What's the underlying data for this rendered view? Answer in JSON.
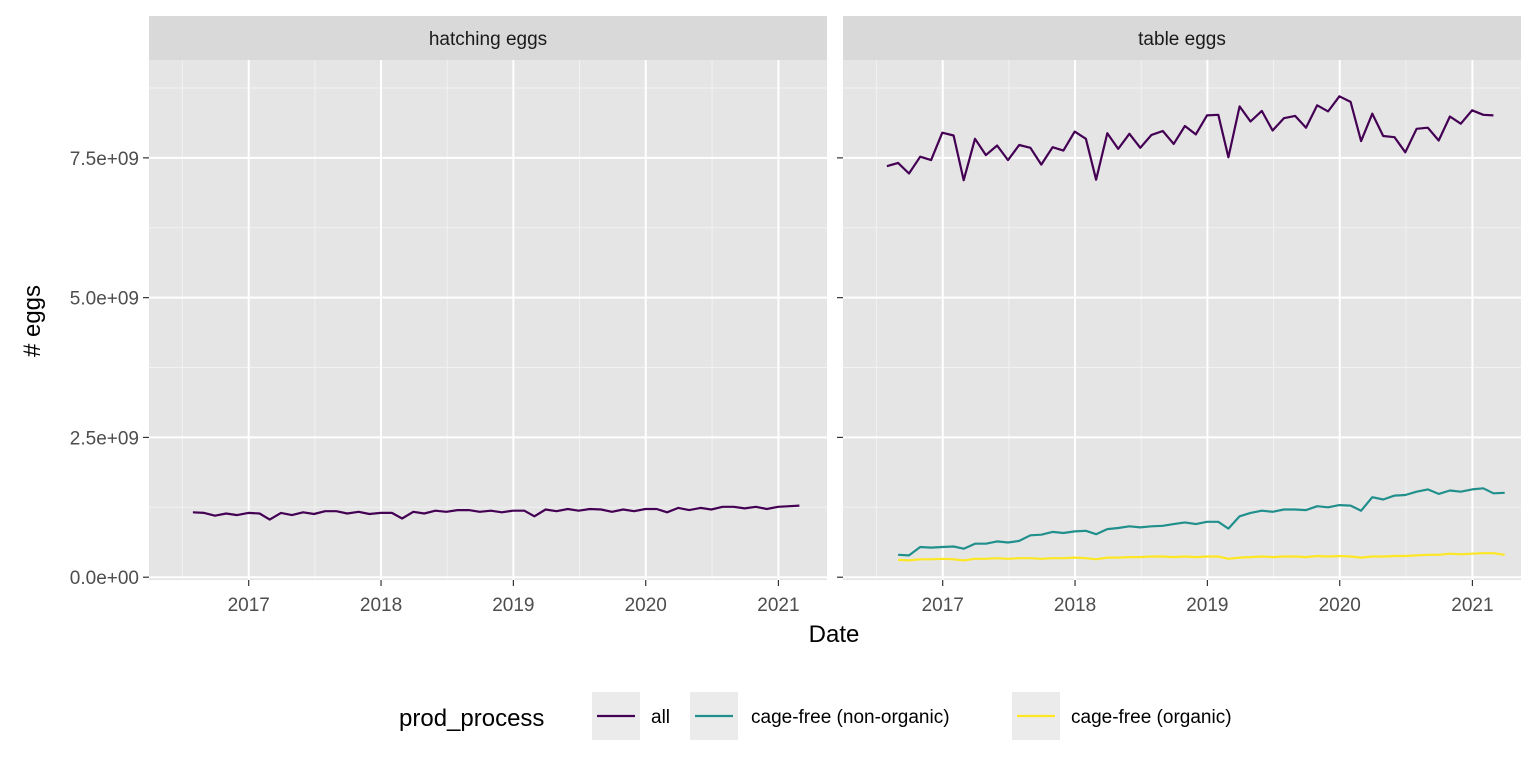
{
  "chart_data": {
    "type": "line",
    "title": "",
    "xlabel": "Date",
    "ylabel": "# eggs",
    "ylim": [
      -50000000,
      9250000000
    ],
    "x_range": [
      "2016-04-01",
      "2021-05-15"
    ],
    "y_ticks": [
      {
        "value": 0,
        "label": "0.0e+00"
      },
      {
        "value": 2500000000,
        "label": "2.5e+09"
      },
      {
        "value": 5000000000,
        "label": "5.0e+09"
      },
      {
        "value": 7500000000,
        "label": "7.5e+09"
      }
    ],
    "x_ticks": [
      {
        "value": "2017-01-01",
        "label": "2017"
      },
      {
        "value": "2018-01-01",
        "label": "2018"
      },
      {
        "value": "2019-01-01",
        "label": "2019"
      },
      {
        "value": "2020-01-01",
        "label": "2020"
      },
      {
        "value": "2021-01-01",
        "label": "2021"
      }
    ],
    "grid": true,
    "legend": {
      "title": "prod_process",
      "position": "bottom",
      "entries": [
        {
          "label": "all",
          "color": "#440154"
        },
        {
          "label": "cage-free (non-organic)",
          "color": "#21908c"
        },
        {
          "label": "cage-free (organic)",
          "color": "#fde725"
        }
      ]
    },
    "panels": [
      {
        "strip": "hatching eggs",
        "series": [
          {
            "legend_label": "all",
            "color": "#440154",
            "x": [
              "2016-07-31",
              "2016-08-31",
              "2016-09-30",
              "2016-10-31",
              "2016-11-30",
              "2016-12-31",
              "2017-01-31",
              "2017-02-28",
              "2017-03-31",
              "2017-04-30",
              "2017-05-31",
              "2017-06-30",
              "2017-07-31",
              "2017-08-31",
              "2017-09-30",
              "2017-10-31",
              "2017-11-30",
              "2017-12-31",
              "2018-01-31",
              "2018-02-28",
              "2018-03-31",
              "2018-04-30",
              "2018-05-31",
              "2018-06-30",
              "2018-07-31",
              "2018-08-31",
              "2018-09-30",
              "2018-10-31",
              "2018-11-30",
              "2018-12-31",
              "2019-01-31",
              "2019-02-28",
              "2019-03-31",
              "2019-04-30",
              "2019-05-31",
              "2019-06-30",
              "2019-07-31",
              "2019-08-31",
              "2019-09-30",
              "2019-10-31",
              "2019-11-30",
              "2019-12-31",
              "2020-01-31",
              "2020-02-29",
              "2020-03-31",
              "2020-04-30",
              "2020-05-31",
              "2020-06-30",
              "2020-07-31",
              "2020-08-31",
              "2020-09-30",
              "2020-10-31",
              "2020-11-30",
              "2020-12-31",
              "2021-01-31",
              "2021-02-28"
            ],
            "y": [
              1160000000,
              1150000000,
              1100000000,
              1140000000,
              1110000000,
              1150000000,
              1140000000,
              1030000000,
              1150000000,
              1110000000,
              1160000000,
              1130000000,
              1180000000,
              1180000000,
              1140000000,
              1170000000,
              1130000000,
              1150000000,
              1150000000,
              1050000000,
              1170000000,
              1140000000,
              1190000000,
              1170000000,
              1200000000,
              1200000000,
              1170000000,
              1190000000,
              1160000000,
              1190000000,
              1190000000,
              1090000000,
              1210000000,
              1180000000,
              1220000000,
              1190000000,
              1220000000,
              1210000000,
              1170000000,
              1210000000,
              1180000000,
              1220000000,
              1220000000,
              1160000000,
              1240000000,
              1200000000,
              1240000000,
              1210000000,
              1260000000,
              1260000000,
              1230000000,
              1260000000,
              1220000000,
              1260000000,
              1270000000,
              1280000000
            ]
          }
        ]
      },
      {
        "strip": "table eggs",
        "series": [
          {
            "legend_label": "all",
            "color": "#440154",
            "x": [
              "2016-07-31",
              "2016-08-31",
              "2016-09-30",
              "2016-10-31",
              "2016-11-30",
              "2016-12-31",
              "2017-01-31",
              "2017-02-28",
              "2017-03-31",
              "2017-04-30",
              "2017-05-31",
              "2017-06-30",
              "2017-07-31",
              "2017-08-31",
              "2017-09-30",
              "2017-10-31",
              "2017-11-30",
              "2017-12-31",
              "2018-01-31",
              "2018-02-28",
              "2018-03-31",
              "2018-04-30",
              "2018-05-31",
              "2018-06-30",
              "2018-07-31",
              "2018-08-31",
              "2018-09-30",
              "2018-10-31",
              "2018-11-30",
              "2018-12-31",
              "2019-01-31",
              "2019-02-28",
              "2019-03-31",
              "2019-04-30",
              "2019-05-31",
              "2019-06-30",
              "2019-07-31",
              "2019-08-31",
              "2019-09-30",
              "2019-10-31",
              "2019-11-30",
              "2019-12-31",
              "2020-01-31",
              "2020-02-29",
              "2020-03-31",
              "2020-04-30",
              "2020-05-31",
              "2020-06-30",
              "2020-07-31",
              "2020-08-31",
              "2020-09-30",
              "2020-10-31",
              "2020-11-30",
              "2020-12-31",
              "2021-01-31",
              "2021-02-28"
            ],
            "y": [
              7350000000,
              7410000000,
              7220000000,
              7520000000,
              7460000000,
              7950000000,
              7900000000,
              7100000000,
              7840000000,
              7550000000,
              7720000000,
              7460000000,
              7730000000,
              7680000000,
              7380000000,
              7690000000,
              7630000000,
              7970000000,
              7840000000,
              7110000000,
              7940000000,
              7660000000,
              7930000000,
              7680000000,
              7910000000,
              7980000000,
              7750000000,
              8070000000,
              7920000000,
              8260000000,
              8270000000,
              7510000000,
              8420000000,
              8150000000,
              8340000000,
              7990000000,
              8210000000,
              8250000000,
              8040000000,
              8440000000,
              8330000000,
              8600000000,
              8500000000,
              7800000000,
              8290000000,
              7890000000,
              7870000000,
              7600000000,
              8020000000,
              8040000000,
              7810000000,
              8240000000,
              8110000000,
              8350000000,
              8270000000,
              8260000000
            ]
          },
          {
            "legend_label": "cage-free (non-organic)",
            "color": "#21908c",
            "x": [
              "2016-08-31",
              "2016-09-30",
              "2016-10-31",
              "2016-11-30",
              "2016-12-31",
              "2017-01-31",
              "2017-02-28",
              "2017-03-31",
              "2017-04-30",
              "2017-05-31",
              "2017-06-30",
              "2017-07-31",
              "2017-08-31",
              "2017-09-30",
              "2017-10-31",
              "2017-11-30",
              "2017-12-31",
              "2018-01-31",
              "2018-02-28",
              "2018-03-31",
              "2018-04-30",
              "2018-05-31",
              "2018-06-30",
              "2018-07-31",
              "2018-08-31",
              "2018-09-30",
              "2018-10-31",
              "2018-11-30",
              "2018-12-31",
              "2019-01-31",
              "2019-02-28",
              "2019-03-31",
              "2019-04-30",
              "2019-05-31",
              "2019-06-30",
              "2019-07-31",
              "2019-08-31",
              "2019-09-30",
              "2019-10-31",
              "2019-11-30",
              "2019-12-31",
              "2020-01-31",
              "2020-02-29",
              "2020-03-31",
              "2020-04-30",
              "2020-05-31",
              "2020-06-30",
              "2020-07-31",
              "2020-08-31",
              "2020-09-30",
              "2020-10-31",
              "2020-11-30",
              "2020-12-31",
              "2021-01-31",
              "2021-02-28",
              "2021-03-31"
            ],
            "y": [
              400000000,
              390000000,
              540000000,
              530000000,
              540000000,
              550000000,
              510000000,
              600000000,
              600000000,
              640000000,
              620000000,
              650000000,
              750000000,
              760000000,
              810000000,
              790000000,
              820000000,
              830000000,
              770000000,
              860000000,
              880000000,
              910000000,
              890000000,
              910000000,
              920000000,
              950000000,
              980000000,
              950000000,
              990000000,
              990000000,
              870000000,
              1090000000,
              1150000000,
              1190000000,
              1170000000,
              1210000000,
              1210000000,
              1200000000,
              1270000000,
              1250000000,
              1290000000,
              1280000000,
              1190000000,
              1430000000,
              1390000000,
              1460000000,
              1470000000,
              1530000000,
              1570000000,
              1490000000,
              1550000000,
              1530000000,
              1570000000,
              1590000000,
              1500000000,
              1510000000
            ]
          },
          {
            "legend_label": "cage-free (organic)",
            "color": "#fde725",
            "x": [
              "2016-08-31",
              "2016-09-30",
              "2016-10-31",
              "2016-11-30",
              "2016-12-31",
              "2017-01-31",
              "2017-02-28",
              "2017-03-31",
              "2017-04-30",
              "2017-05-31",
              "2017-06-30",
              "2017-07-31",
              "2017-08-31",
              "2017-09-30",
              "2017-10-31",
              "2017-11-30",
              "2017-12-31",
              "2018-01-31",
              "2018-02-28",
              "2018-03-31",
              "2018-04-30",
              "2018-05-31",
              "2018-06-30",
              "2018-07-31",
              "2018-08-31",
              "2018-09-30",
              "2018-10-31",
              "2018-11-30",
              "2018-12-31",
              "2019-01-31",
              "2019-02-28",
              "2019-03-31",
              "2019-04-30",
              "2019-05-31",
              "2019-06-30",
              "2019-07-31",
              "2019-08-31",
              "2019-09-30",
              "2019-10-31",
              "2019-11-30",
              "2019-12-31",
              "2020-01-31",
              "2020-02-29",
              "2020-03-31",
              "2020-04-30",
              "2020-05-31",
              "2020-06-30",
              "2020-07-31",
              "2020-08-31",
              "2020-09-30",
              "2020-10-31",
              "2020-11-30",
              "2020-12-31",
              "2021-01-31",
              "2021-02-28",
              "2021-03-31"
            ],
            "y": [
              310000000,
              300000000,
              320000000,
              320000000,
              330000000,
              320000000,
              300000000,
              330000000,
              330000000,
              340000000,
              330000000,
              340000000,
              340000000,
              330000000,
              340000000,
              340000000,
              350000000,
              340000000,
              320000000,
              350000000,
              350000000,
              360000000,
              360000000,
              370000000,
              370000000,
              360000000,
              370000000,
              360000000,
              370000000,
              370000000,
              330000000,
              350000000,
              360000000,
              370000000,
              360000000,
              370000000,
              370000000,
              360000000,
              380000000,
              370000000,
              380000000,
              370000000,
              350000000,
              370000000,
              370000000,
              380000000,
              380000000,
              390000000,
              400000000,
              400000000,
              420000000,
              410000000,
              420000000,
              430000000,
              430000000,
              400000000
            ]
          }
        ]
      }
    ]
  }
}
